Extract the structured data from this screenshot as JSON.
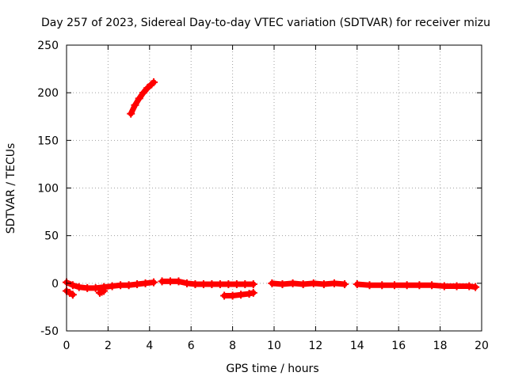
{
  "chart_data": {
    "type": "scatter",
    "title": "Day 257 of 2023, Sidereal Day-to-day VTEC variation (SDTVAR) for receiver mizu",
    "xlabel": "GPS time / hours",
    "ylabel": "SDTVAR / TECUs",
    "xlim": [
      0,
      20
    ],
    "ylim": [
      -50,
      250
    ],
    "xticks": [
      0,
      2,
      4,
      6,
      8,
      10,
      12,
      14,
      16,
      18,
      20
    ],
    "yticks": [
      -50,
      0,
      50,
      100,
      150,
      200,
      250
    ],
    "grid": true,
    "series": [
      {
        "name": "SDTVAR",
        "color": "#ff0000",
        "marker": "plus",
        "segments": [
          {
            "x": [
              0.0,
              0.3,
              0.6,
              1.0,
              1.4,
              1.8,
              2.2,
              2.6,
              3.0,
              3.4,
              3.8,
              4.2
            ],
            "y": [
              1,
              -2,
              -4,
              -5,
              -5,
              -4,
              -3,
              -2,
              -2,
              -1,
              0,
              1
            ]
          },
          {
            "x": [
              0.0,
              0.15,
              0.3
            ],
            "y": [
              -8,
              -10,
              -12
            ]
          },
          {
            "x": [
              1.6,
              1.7,
              1.8
            ],
            "y": [
              -10,
              -9,
              -8
            ]
          },
          {
            "x": [
              3.1,
              3.3,
              3.5,
              3.7,
              3.9,
              4.1,
              4.2
            ],
            "y": [
              178,
              187,
              194,
              200,
              205,
              209,
              211
            ]
          },
          {
            "x": [
              4.6,
              5.0,
              5.4,
              5.8,
              6.2,
              6.6,
              7.0,
              7.4,
              7.8,
              8.2,
              8.6,
              9.0
            ],
            "y": [
              2,
              2,
              2,
              0,
              -1,
              -1,
              -1,
              -1,
              -1,
              -1,
              -1,
              -1
            ]
          },
          {
            "x": [
              7.6,
              8.0,
              8.4,
              8.8,
              9.0
            ],
            "y": [
              -13,
              -13,
              -12,
              -11,
              -10
            ]
          },
          {
            "x": [
              9.9,
              10.4,
              10.9,
              11.4,
              11.9,
              12.4,
              12.9,
              13.4
            ],
            "y": [
              0,
              -1,
              0,
              -1,
              0,
              -1,
              0,
              -1
            ]
          },
          {
            "x": [
              14.0,
              14.6,
              15.2,
              15.8,
              16.4,
              17.0,
              17.6,
              18.2,
              18.8,
              19.4,
              19.7
            ],
            "y": [
              -1,
              -2,
              -2,
              -2,
              -2,
              -2,
              -2,
              -3,
              -3,
              -3,
              -4
            ]
          }
        ]
      }
    ]
  }
}
